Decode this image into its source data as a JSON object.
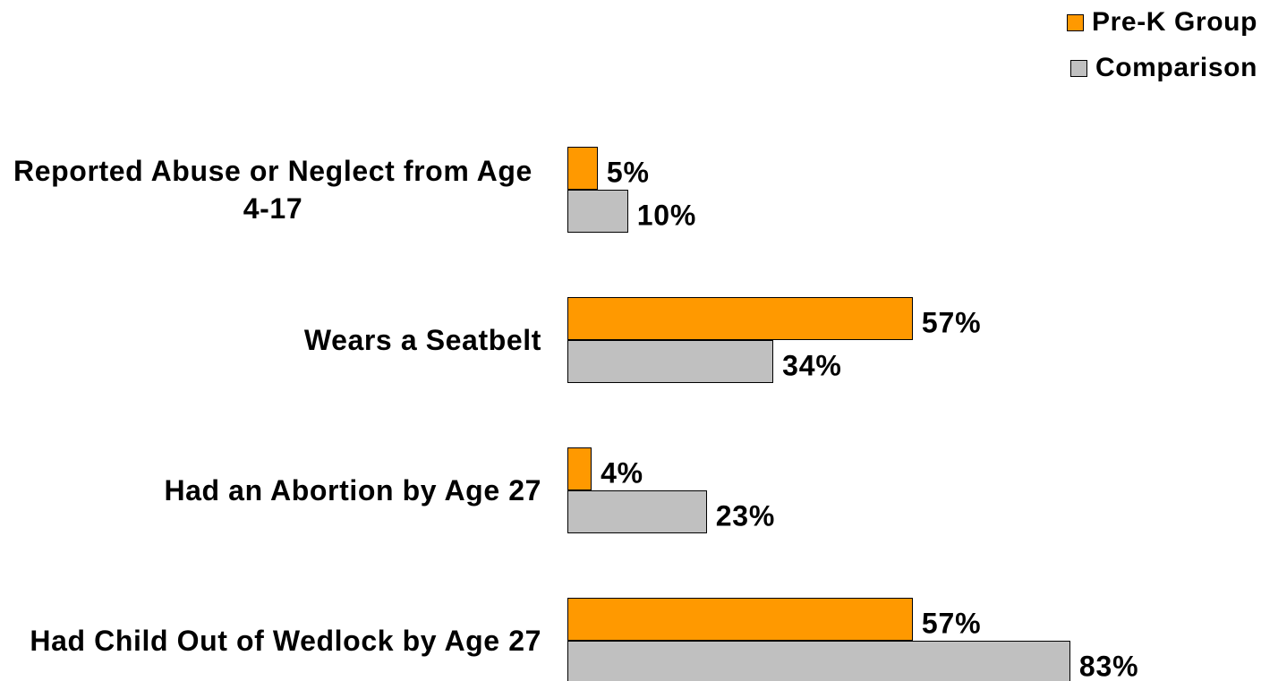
{
  "chart_data": {
    "type": "bar",
    "orientation": "horizontal",
    "categories": [
      "Reported Abuse or Neglect from Age 4-17",
      "Wears a Seatbelt",
      "Had an Abortion by Age 27",
      "Had Child Out of Wedlock by Age 27"
    ],
    "series": [
      {
        "name": "Pre-K Group",
        "color": "#ff9900",
        "values": [
          5,
          57,
          4,
          57
        ],
        "value_labels": [
          "5%",
          "57%",
          "4%",
          "57%"
        ]
      },
      {
        "name": "Comparison",
        "color": "#c0c0c0",
        "values": [
          10,
          34,
          23,
          83
        ],
        "value_labels": [
          "10%",
          "34%",
          "23%",
          "83%"
        ]
      }
    ],
    "legend": "top-right"
  }
}
